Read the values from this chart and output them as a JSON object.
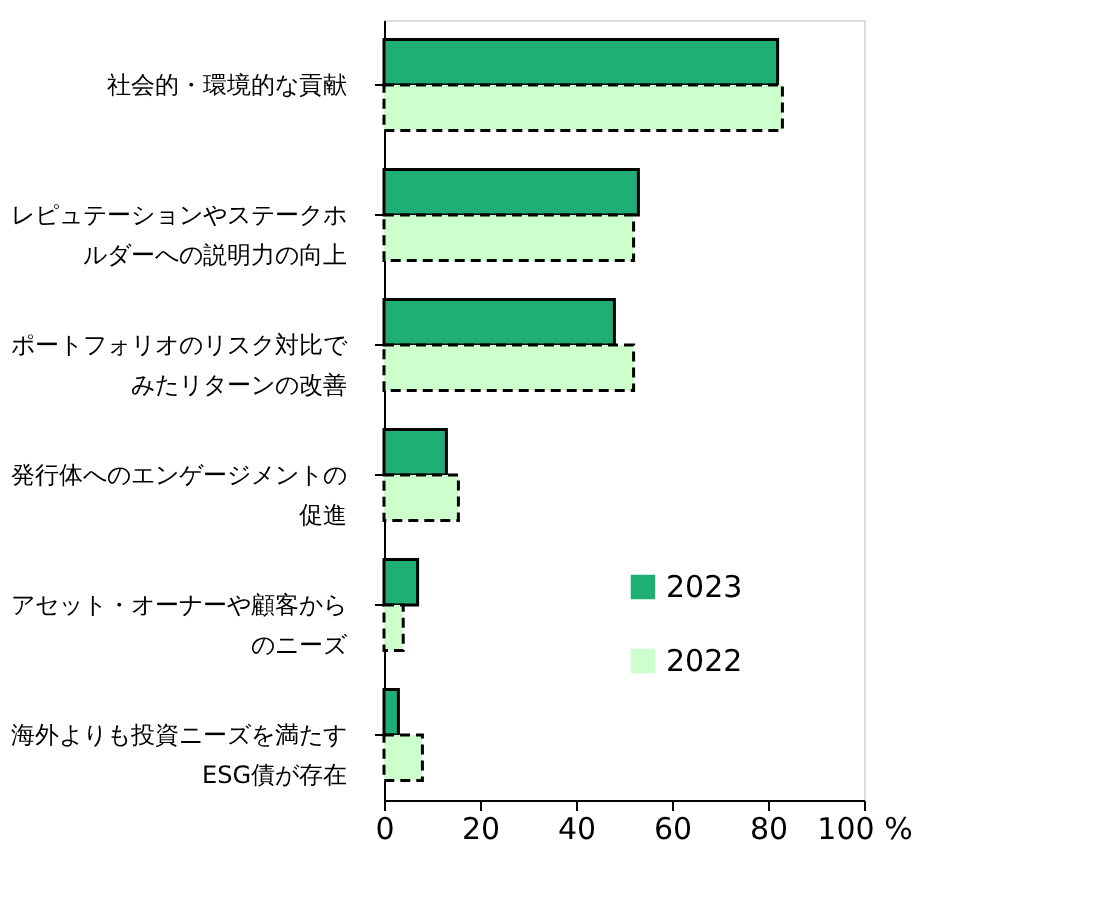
{
  "chart_data": {
    "type": "bar",
    "orientation": "horizontal",
    "categories": [
      "社会的・環境的な貢献",
      "レピュテーションやステークホルダーへの説明力の向上",
      "ポートフォリオのリスク対比でみたリターンの改善",
      "発行体へのエンゲージメントの促進",
      "アセット・オーナーや顧客からのニーズ",
      "海外よりも投資ニーズを満たすESG債が存在"
    ],
    "series": [
      {
        "name": "2023",
        "color": "#1fae74",
        "line_style": "solid",
        "values": [
          82,
          53,
          48,
          13,
          7,
          3
        ]
      },
      {
        "name": "2022",
        "color": "#ccffcc",
        "line_style": "dashed",
        "values": [
          83,
          52,
          52,
          15.5,
          4,
          8
        ]
      }
    ],
    "xlim": [
      0,
      100
    ],
    "xticks": [
      0,
      20,
      40,
      60,
      80,
      {
        "value": 100,
        "label": "100 %"
      }
    ],
    "grid": false,
    "legend": "bottom right"
  }
}
